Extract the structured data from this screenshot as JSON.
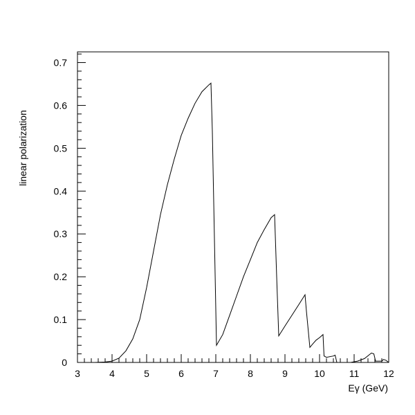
{
  "chart_data": {
    "type": "line",
    "xlabel": "Eγ (GeV)",
    "ylabel": "linear polarization",
    "xlim": [
      3,
      12
    ],
    "ylim": [
      0,
      0.725
    ],
    "x_ticks": [
      3,
      4,
      5,
      6,
      7,
      8,
      9,
      10,
      11,
      12
    ],
    "y_ticks": [
      0,
      0.1,
      0.2,
      0.3,
      0.4,
      0.5,
      0.6,
      0.7
    ],
    "x_tick_labels": [
      "3",
      "4",
      "5",
      "6",
      "7",
      "8",
      "9",
      "10",
      "11",
      "12"
    ],
    "y_tick_labels": [
      "0",
      "0.1",
      "0.2",
      "0.3",
      "0.4",
      "0.5",
      "0.6",
      "0.7"
    ],
    "grid": false,
    "legend": false,
    "series": [
      {
        "x": [
          3.5,
          3.8,
          4.0,
          4.2,
          4.4,
          4.6,
          4.8,
          5.0,
          5.2,
          5.4,
          5.6,
          5.8,
          6.0,
          6.2,
          6.4,
          6.6,
          6.8,
          6.86,
          6.9,
          7.02,
          7.2,
          7.4,
          7.6,
          7.8,
          8.0,
          8.2,
          8.4,
          8.6,
          8.7,
          8.76,
          8.82,
          9.0,
          9.2,
          9.4,
          9.58,
          9.62,
          9.72,
          9.8,
          9.9,
          10.0,
          10.1,
          10.13,
          10.2,
          10.4,
          10.45,
          10.5,
          10.9,
          11.1,
          11.3,
          11.5,
          11.57,
          11.62,
          11.8,
          11.85,
          11.92,
          12.0
        ],
        "y": [
          0.0,
          0.001,
          0.003,
          0.01,
          0.027,
          0.055,
          0.1,
          0.175,
          0.26,
          0.345,
          0.415,
          0.475,
          0.53,
          0.57,
          0.605,
          0.632,
          0.648,
          0.652,
          0.54,
          0.04,
          0.065,
          0.11,
          0.155,
          0.2,
          0.24,
          0.28,
          0.31,
          0.338,
          0.345,
          0.2,
          0.062,
          0.085,
          0.11,
          0.135,
          0.158,
          0.12,
          0.035,
          0.043,
          0.052,
          0.058,
          0.065,
          0.015,
          0.012,
          0.015,
          0.017,
          0.0,
          0.0,
          0.003,
          0.009,
          0.022,
          0.02,
          0.003,
          0.003,
          0.007,
          0.005,
          0.0
        ]
      }
    ]
  }
}
